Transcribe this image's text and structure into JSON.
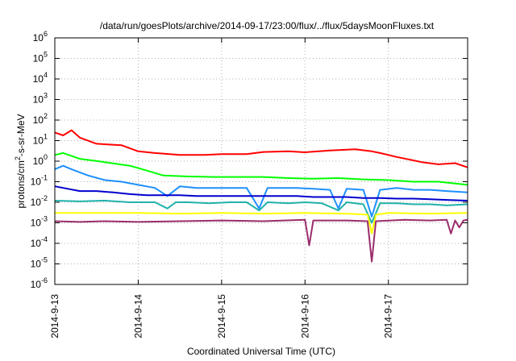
{
  "chart_data": {
    "type": "line",
    "title": "/data/run/goesPlots/archive/2014-09-17/23:00/flux/../flux/5daysMoonFluxes.txt",
    "xlabel": "Coordinated Universal Time (UTC)",
    "ylabel": {
      "main": "protons/cm",
      "sup": "2",
      "rest": "-s-sr-MeV"
    },
    "yscale": "log",
    "ylim_exp": [
      -6,
      6
    ],
    "y_tick_base": "10",
    "y_tick_exponents": [
      "-6",
      "-5",
      "-4",
      "-3",
      "-2",
      "-1",
      "0",
      "1",
      "2",
      "3",
      "4",
      "5",
      "6"
    ],
    "xlim": [
      0,
      4.95
    ],
    "x_tick_positions": [
      0,
      1,
      2,
      3,
      4
    ],
    "x_tick_labels": [
      "2014-9-13",
      "2014-9-14",
      "2014-9-15",
      "2014-9-16",
      "2014-9-17"
    ],
    "grid": true,
    "series": [
      {
        "color": "#ff0000",
        "points": [
          [
            0,
            25
          ],
          [
            0.1,
            18
          ],
          [
            0.2,
            32
          ],
          [
            0.3,
            14
          ],
          [
            0.5,
            7
          ],
          [
            0.8,
            6
          ],
          [
            1.0,
            3
          ],
          [
            1.2,
            2.5
          ],
          [
            1.5,
            2
          ],
          [
            1.8,
            2
          ],
          [
            2.0,
            2.2
          ],
          [
            2.3,
            2.2
          ],
          [
            2.5,
            2.8
          ],
          [
            2.8,
            3
          ],
          [
            3.0,
            2.7
          ],
          [
            3.3,
            3.3
          ],
          [
            3.6,
            3.8
          ],
          [
            3.8,
            3
          ],
          [
            3.9,
            2.5
          ],
          [
            4.1,
            1.6
          ],
          [
            4.4,
            0.9
          ],
          [
            4.6,
            0.7
          ],
          [
            4.8,
            0.8
          ],
          [
            4.95,
            0.5
          ]
        ]
      },
      {
        "color": "#00ff00",
        "points": [
          [
            0,
            2
          ],
          [
            0.1,
            2.5
          ],
          [
            0.3,
            1.3
          ],
          [
            0.6,
            0.9
          ],
          [
            0.9,
            0.6
          ],
          [
            1.1,
            0.35
          ],
          [
            1.3,
            0.2
          ],
          [
            1.6,
            0.18
          ],
          [
            1.9,
            0.17
          ],
          [
            2.2,
            0.17
          ],
          [
            2.5,
            0.17
          ],
          [
            2.8,
            0.15
          ],
          [
            3.1,
            0.14
          ],
          [
            3.4,
            0.15
          ],
          [
            3.7,
            0.13
          ],
          [
            4.0,
            0.12
          ],
          [
            4.3,
            0.1
          ],
          [
            4.6,
            0.1
          ],
          [
            4.95,
            0.07
          ]
        ]
      },
      {
        "color": "#1e90ff",
        "points": [
          [
            0,
            0.4
          ],
          [
            0.1,
            0.6
          ],
          [
            0.2,
            0.4
          ],
          [
            0.4,
            0.2
          ],
          [
            0.6,
            0.12
          ],
          [
            0.8,
            0.1
          ],
          [
            1.0,
            0.07
          ],
          [
            1.2,
            0.05
          ],
          [
            1.35,
            0.02
          ],
          [
            1.5,
            0.06
          ],
          [
            1.7,
            0.05
          ],
          [
            1.9,
            0.05
          ],
          [
            2.1,
            0.05
          ],
          [
            2.3,
            0.05
          ],
          [
            2.45,
            0.005
          ],
          [
            2.55,
            0.05
          ],
          [
            2.7,
            0.05
          ],
          [
            2.9,
            0.05
          ],
          [
            3.1,
            0.045
          ],
          [
            3.3,
            0.04
          ],
          [
            3.4,
            0.005
          ],
          [
            3.5,
            0.045
          ],
          [
            3.7,
            0.04
          ],
          [
            3.8,
            0.002
          ],
          [
            3.9,
            0.04
          ],
          [
            4.1,
            0.05
          ],
          [
            4.3,
            0.04
          ],
          [
            4.5,
            0.04
          ],
          [
            4.7,
            0.035
          ],
          [
            4.95,
            0.03
          ]
        ]
      },
      {
        "color": "#0000cd",
        "points": [
          [
            0,
            0.06
          ],
          [
            0.1,
            0.05
          ],
          [
            0.3,
            0.035
          ],
          [
            0.5,
            0.035
          ],
          [
            0.7,
            0.03
          ],
          [
            0.9,
            0.025
          ],
          [
            1.1,
            0.022
          ],
          [
            1.3,
            0.022
          ],
          [
            1.5,
            0.022
          ],
          [
            1.7,
            0.02
          ],
          [
            1.9,
            0.02
          ],
          [
            2.1,
            0.02
          ],
          [
            2.3,
            0.02
          ],
          [
            2.5,
            0.02
          ],
          [
            2.7,
            0.02
          ],
          [
            2.9,
            0.02
          ],
          [
            3.1,
            0.018
          ],
          [
            3.3,
            0.018
          ],
          [
            3.5,
            0.018
          ],
          [
            3.7,
            0.016
          ],
          [
            3.9,
            0.016
          ],
          [
            4.1,
            0.015
          ],
          [
            4.3,
            0.015
          ],
          [
            4.5,
            0.014
          ],
          [
            4.7,
            0.013
          ],
          [
            4.95,
            0.012
          ]
        ]
      },
      {
        "color": "#20b2aa",
        "points": [
          [
            0,
            0.012
          ],
          [
            0.3,
            0.011
          ],
          [
            0.6,
            0.012
          ],
          [
            0.9,
            0.01
          ],
          [
            1.2,
            0.01
          ],
          [
            1.35,
            0.005
          ],
          [
            1.45,
            0.01
          ],
          [
            1.6,
            0.01
          ],
          [
            1.85,
            0.009
          ],
          [
            2.1,
            0.01
          ],
          [
            2.3,
            0.01
          ],
          [
            2.45,
            0.004
          ],
          [
            2.55,
            0.01
          ],
          [
            2.8,
            0.009
          ],
          [
            3.0,
            0.01
          ],
          [
            3.2,
            0.009
          ],
          [
            3.4,
            0.004
          ],
          [
            3.5,
            0.01
          ],
          [
            3.7,
            0.008
          ],
          [
            3.8,
            0.001
          ],
          [
            3.9,
            0.009
          ],
          [
            4.1,
            0.009
          ],
          [
            4.3,
            0.008
          ],
          [
            4.5,
            0.008
          ],
          [
            4.7,
            0.007
          ],
          [
            4.95,
            0.008
          ]
        ]
      },
      {
        "color": "#ffff00",
        "points": [
          [
            0,
            0.003
          ],
          [
            0.5,
            0.003
          ],
          [
            1.0,
            0.003
          ],
          [
            1.5,
            0.0028
          ],
          [
            2.0,
            0.003
          ],
          [
            2.5,
            0.0028
          ],
          [
            3.0,
            0.003
          ],
          [
            3.5,
            0.0028
          ],
          [
            3.75,
            0.0025
          ],
          [
            3.8,
            0.0003
          ],
          [
            3.85,
            0.0025
          ],
          [
            4.0,
            0.003
          ],
          [
            4.5,
            0.0028
          ],
          [
            4.95,
            0.003
          ]
        ]
      },
      {
        "color": "#9b2d6b",
        "points": [
          [
            0,
            0.0012
          ],
          [
            0.3,
            0.0011
          ],
          [
            0.6,
            0.0012
          ],
          [
            1.0,
            0.0011
          ],
          [
            1.5,
            0.0012
          ],
          [
            2.0,
            0.0013
          ],
          [
            2.5,
            0.0012
          ],
          [
            3.0,
            0.0014
          ],
          [
            3.05,
            8e-05
          ],
          [
            3.1,
            0.0013
          ],
          [
            3.5,
            0.0013
          ],
          [
            3.75,
            0.0012
          ],
          [
            3.8,
            1.3e-05
          ],
          [
            3.85,
            0.0012
          ],
          [
            4.2,
            0.0014
          ],
          [
            4.5,
            0.0013
          ],
          [
            4.7,
            0.0014
          ],
          [
            4.75,
            0.0003
          ],
          [
            4.8,
            0.0013
          ],
          [
            4.85,
            0.0006
          ],
          [
            4.9,
            0.0013
          ],
          [
            4.95,
            0.0014
          ]
        ]
      }
    ]
  }
}
